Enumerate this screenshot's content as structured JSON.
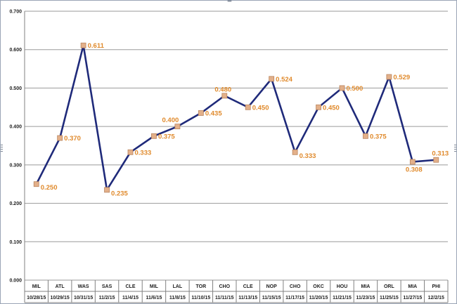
{
  "chart_data": {
    "type": "line",
    "title": "",
    "xlabel": "",
    "ylabel": "",
    "ylim": [
      0,
      0.7
    ],
    "yticks": [
      "0.000",
      "0.100",
      "0.200",
      "0.300",
      "0.400",
      "0.500",
      "0.600",
      "0.700"
    ],
    "grid": true,
    "legend": "none",
    "categories": [
      {
        "team": "MIL",
        "date": "10/28/15"
      },
      {
        "team": "ATL",
        "date": "10/29/15"
      },
      {
        "team": "WAS",
        "date": "10/31/15"
      },
      {
        "team": "SAS",
        "date": "11/2/15"
      },
      {
        "team": "CLE",
        "date": "11/4/15"
      },
      {
        "team": "MIL",
        "date": "11/6/15"
      },
      {
        "team": "LAL",
        "date": "11/8/15"
      },
      {
        "team": "TOR",
        "date": "11/10/15"
      },
      {
        "team": "CHO",
        "date": "11/11/15"
      },
      {
        "team": "CLE",
        "date": "11/13/15"
      },
      {
        "team": "NOP",
        "date": "11/15/15"
      },
      {
        "team": "CHO",
        "date": "11/17/15"
      },
      {
        "team": "OKC",
        "date": "11/20/15"
      },
      {
        "team": "HOU",
        "date": "11/21/15"
      },
      {
        "team": "MIA",
        "date": "11/23/15"
      },
      {
        "team": "ORL",
        "date": "11/25/15"
      },
      {
        "team": "MIA",
        "date": "11/27/15"
      },
      {
        "team": "PHI",
        "date": "12/2/15"
      }
    ],
    "values": [
      0.25,
      0.37,
      0.611,
      0.235,
      0.333,
      0.375,
      0.4,
      0.435,
      0.48,
      0.45,
      0.524,
      0.333,
      0.45,
      0.5,
      0.375,
      0.529,
      0.308,
      0.313
    ],
    "data_labels": [
      "0.250",
      "0.370",
      "0.611",
      "0.235",
      "0.333",
      "0.375",
      "0.400",
      "0.435",
      "0.480",
      "0.450",
      "0.524",
      "0.333",
      "0.450",
      "0.500",
      "0.375",
      "0.529",
      "0.308",
      "0.313"
    ],
    "colors": {
      "line": "#1f2a7a",
      "marker_fill": "#e3b08a",
      "marker_stroke": "#b9855f",
      "label": "#e08a2c",
      "grid": "#9a9a9a"
    }
  }
}
